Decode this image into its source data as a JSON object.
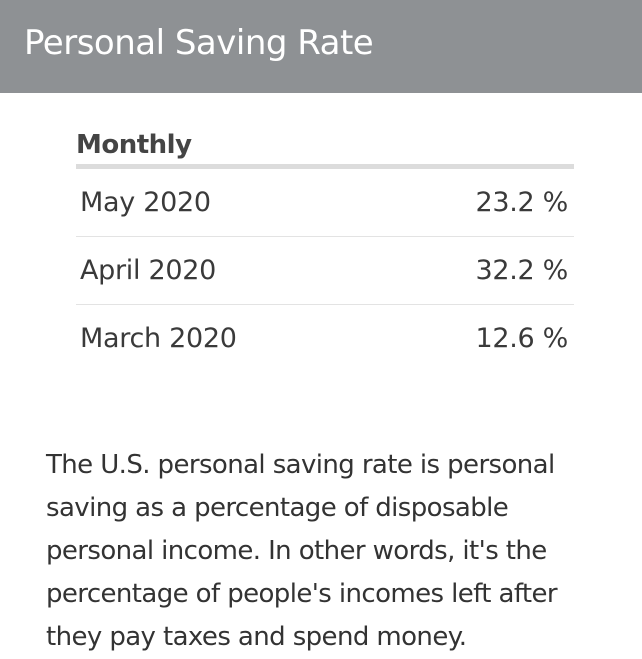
{
  "header": {
    "title": "Personal Saving Rate"
  },
  "table": {
    "heading": "Monthly",
    "rows": [
      {
        "period": "May 2020",
        "value": "23.2 %"
      },
      {
        "period": "April 2020",
        "value": "32.2 %"
      },
      {
        "period": "March 2020",
        "value": "12.6 %"
      }
    ]
  },
  "description": "The U.S. personal saving rate is personal saving as a percentage of disposable personal income. In other words, it's the percentage of people's incomes left after they pay taxes and spend money.",
  "colors": {
    "header_background": "#8e9194",
    "header_text": "#ffffff",
    "divider": "#dcdcdc"
  }
}
